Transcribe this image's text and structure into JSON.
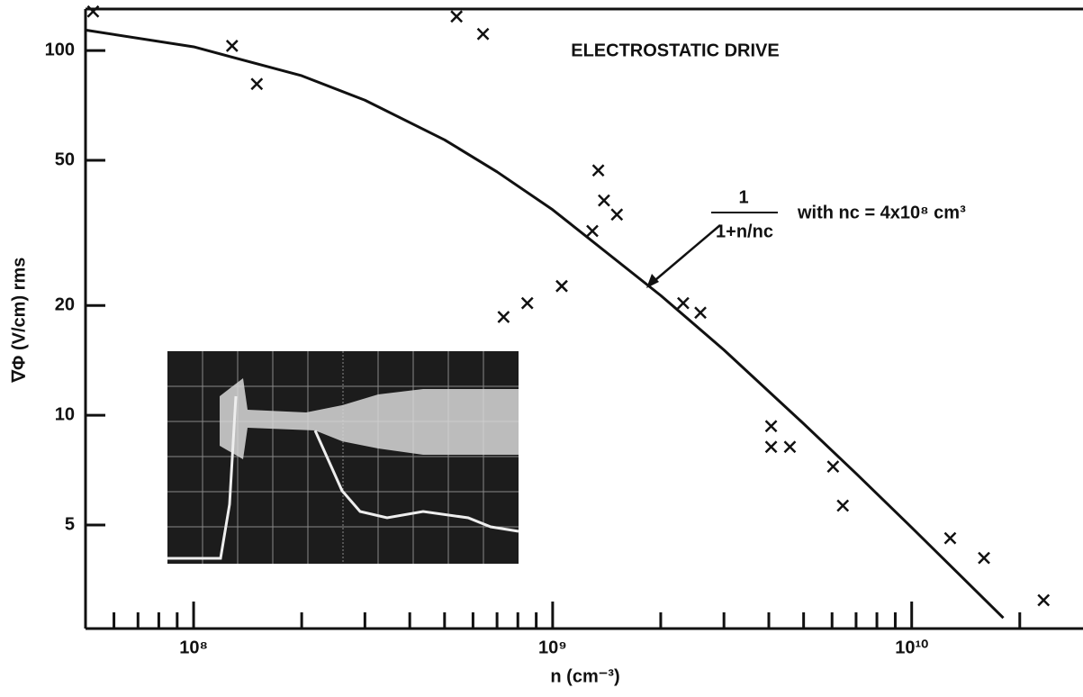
{
  "chart_data": {
    "type": "scatter",
    "title": "ELECTROSTATIC DRIVE",
    "x_label": "n (cm⁻³)",
    "y_label": "∇Φ (V/cm) rms",
    "annotation": {
      "numerator": "1",
      "denominator": "1+n/nc",
      "text": "with nc = 4x10⁸ cm³"
    },
    "log_x": true,
    "log_y": true,
    "xlim": [
      50000000,
      30000000000
    ],
    "ylim": [
      2.6,
      130
    ],
    "xticks": [
      {
        "value": 100000000,
        "label": "10⁸"
      },
      {
        "value": 1000000000,
        "label": "10⁹"
      },
      {
        "value": 10000000000,
        "label": "10¹⁰"
      }
    ],
    "xminorticks": [
      60000000,
      70000000,
      80000000,
      90000000,
      200000000,
      300000000,
      400000000,
      500000000,
      600000000,
      700000000,
      800000000,
      900000000,
      2000000000,
      3000000000,
      4000000000,
      5000000000,
      6000000000,
      7000000000,
      8000000000,
      9000000000,
      20000000000
    ],
    "yticks": [
      5,
      10,
      20,
      50,
      100
    ],
    "series": [
      {
        "type": "scatter",
        "color": "#111111",
        "x": [
          52500000,
          128000000,
          150000000,
          540000000,
          640000000,
          730000000,
          850000000,
          1060000000,
          1340000000,
          1390000000,
          1510000000,
          1290000000,
          2310000000,
          2580000000,
          4060000000,
          4060000000,
          4580000000,
          6040000000,
          6430000000,
          12800000000,
          15900000000,
          23300000000
        ],
        "values": [
          128,
          103,
          81,
          124,
          111,
          18.6,
          20.3,
          22.6,
          46.9,
          38.8,
          35.5,
          32,
          20.3,
          19.1,
          9.33,
          8.19,
          8.19,
          7.23,
          5.65,
          4.6,
          4.06,
          3.11
        ]
      },
      {
        "type": "line",
        "color": "#111111",
        "x": [
          50000000,
          100000000,
          200000000,
          300000000,
          500000000,
          700000000,
          1000000000,
          2000000000,
          3000000000,
          5000000000,
          7000000000,
          10000000000,
          15000000000,
          18000000000
        ],
        "values": [
          113.8,
          102.4,
          85.3,
          73.1,
          56.9,
          46.5,
          36.6,
          21.3,
          15.1,
          9.48,
          6.92,
          4.92,
          3.32,
          2.78
        ]
      }
    ]
  }
}
